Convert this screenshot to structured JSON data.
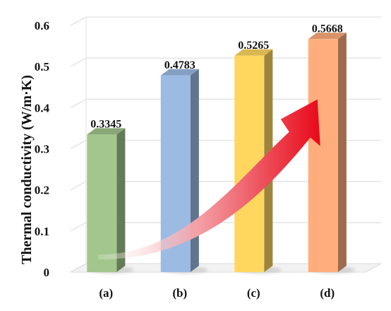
{
  "chart_data": {
    "type": "bar",
    "style": "3d",
    "title": "",
    "xlabel": "",
    "ylabel": "Thermal conductivity (W/m·K)",
    "ylim": [
      0,
      0.6
    ],
    "yticks": [
      "0",
      "0.1",
      "0.2",
      "0.3",
      "0.4",
      "0.5",
      "0.6"
    ],
    "grid": true,
    "legend": "none",
    "categories": [
      "(a)",
      "(b)",
      "(c)",
      "(d)"
    ],
    "values": [
      0.3345,
      0.4783,
      0.5265,
      0.5668
    ],
    "value_labels": [
      "0.3345",
      "0.4783",
      "0.5265",
      "0.5668"
    ],
    "colors": [
      "#a2c68c",
      "#9bbbe3",
      "#ffd75f",
      "#ffad7c"
    ],
    "annotation": {
      "type": "curved-arrow",
      "color": "#e8091a",
      "direction": "increasing"
    }
  }
}
